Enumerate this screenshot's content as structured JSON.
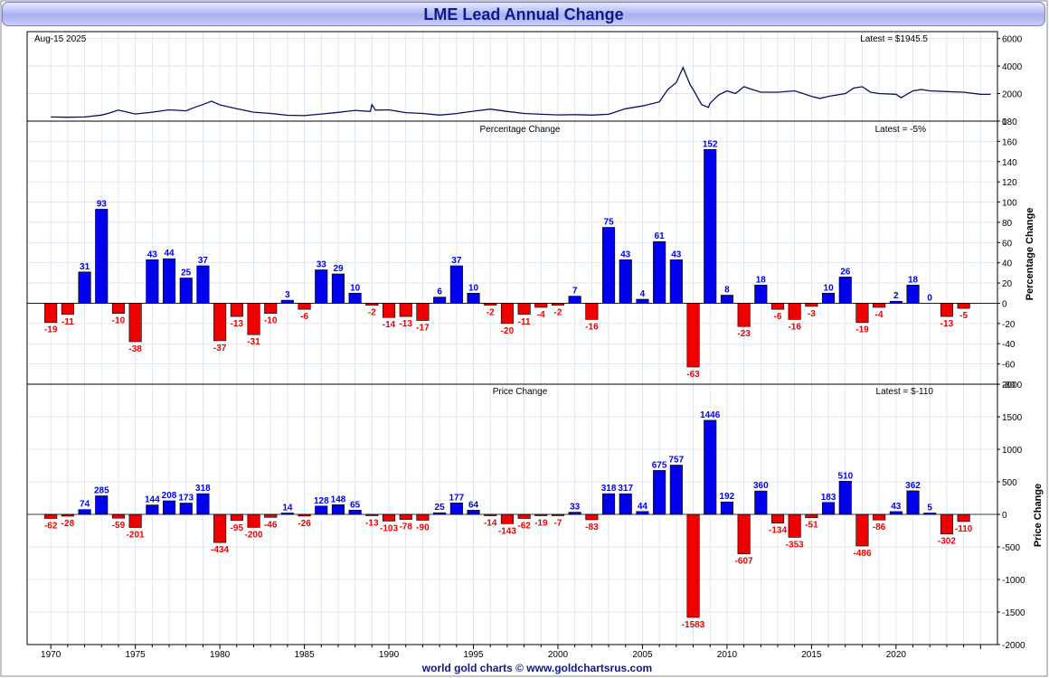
{
  "title": "LME Lead Annual Change",
  "date_label": "Aug-15  2025",
  "footer": "world gold charts © www.goldchartsrus.com",
  "colors": {
    "positive": "#0000ee",
    "negative": "#ee0000",
    "line": "#0a1060",
    "title": "#0d1a8c",
    "grid": "#d7e3ee"
  },
  "chart_data": [
    {
      "type": "line",
      "name": "price",
      "latest_label": "Latest = $1945.5",
      "ylim": [
        0,
        6500
      ],
      "yticks": [
        0,
        2000,
        4000,
        6000
      ],
      "x": [
        1970.0,
        1971.0,
        1972.0,
        1973.0,
        1973.5,
        1974.0,
        1975.0,
        1976.0,
        1977.0,
        1978.0,
        1978.5,
        1979.0,
        1979.5,
        1980.0,
        1981.0,
        1982.0,
        1983.0,
        1984.0,
        1985.0,
        1986.0,
        1987.0,
        1988.0,
        1988.9,
        1989.0,
        1989.2,
        1990.0,
        1991.0,
        1992.0,
        1993.0,
        1994.0,
        1995.0,
        1996.0,
        1997.0,
        1998.0,
        1999.0,
        2000.0,
        2001.0,
        2002.0,
        2003.0,
        2004.0,
        2005.0,
        2006.0,
        2006.5,
        2007.0,
        2007.4,
        2007.8,
        2008.0,
        2008.5,
        2008.9,
        2009.0,
        2009.5,
        2010.0,
        2010.5,
        2011.0,
        2011.5,
        2012.0,
        2013.0,
        2014.0,
        2015.0,
        2015.5,
        2016.0,
        2017.0,
        2017.5,
        2018.0,
        2018.5,
        2019.0,
        2020.0,
        2020.3,
        2021.0,
        2021.5,
        2022.0,
        2023.0,
        2024.0,
        2025.0,
        2025.6
      ],
      "y": [
        300,
        280,
        300,
        440,
        600,
        800,
        520,
        650,
        820,
        750,
        1000,
        1200,
        1450,
        1180,
        900,
        650,
        560,
        430,
        400,
        520,
        640,
        780,
        700,
        1200,
        800,
        820,
        620,
        560,
        440,
        550,
        720,
        870,
        700,
        560,
        500,
        450,
        470,
        440,
        500,
        900,
        1100,
        1400,
        2300,
        2800,
        3900,
        2700,
        2300,
        1200,
        1000,
        1300,
        1900,
        2200,
        2000,
        2500,
        2300,
        2100,
        2100,
        2200,
        1800,
        1650,
        1800,
        2000,
        2400,
        2500,
        2100,
        2000,
        1950,
        1700,
        2200,
        2300,
        2200,
        2150,
        2100,
        1950,
        1945
      ]
    },
    {
      "type": "bar",
      "name": "percentage",
      "panel_title": "Percentage Change",
      "latest_label": "Latest = -5%",
      "ylabel": "Percentage Change",
      "ylim": [
        -80,
        180
      ],
      "yticks": [
        -80,
        -60,
        -40,
        -20,
        0,
        20,
        40,
        60,
        80,
        100,
        120,
        140,
        160,
        180
      ],
      "x": [
        1970,
        1971,
        1972,
        1973,
        1974,
        1975,
        1976,
        1977,
        1978,
        1979,
        1980,
        1981,
        1982,
        1983,
        1984,
        1985,
        1986,
        1987,
        1988,
        1989,
        1990,
        1991,
        1992,
        1993,
        1994,
        1995,
        1996,
        1997,
        1998,
        1999,
        2000,
        2001,
        2002,
        2003,
        2004,
        2005,
        2006,
        2007,
        2008,
        2009,
        2010,
        2011,
        2012,
        2013,
        2014,
        2015,
        2016,
        2017,
        2018,
        2019,
        2020,
        2021,
        2022,
        2023,
        2024
      ],
      "values": [
        -19,
        -11,
        31,
        93,
        -10,
        -38,
        43,
        44,
        25,
        37,
        -37,
        -13,
        -31,
        -10,
        3,
        -6,
        33,
        29,
        10,
        -2,
        -14,
        -13,
        -17,
        6,
        37,
        10,
        -2,
        -20,
        -11,
        -4,
        -2,
        7,
        -16,
        75,
        43,
        4,
        61,
        43,
        -63,
        152,
        8,
        -23,
        18,
        -6,
        -16,
        -3,
        10,
        26,
        -19,
        -4,
        2,
        18,
        0,
        -13,
        -5
      ]
    },
    {
      "type": "bar",
      "name": "price_change",
      "panel_title": "Price Change",
      "latest_label": "Latest = $-110",
      "ylabel": "Price Change",
      "ylim": [
        -2000,
        2000
      ],
      "yticks": [
        -2000,
        -1500,
        -1000,
        -500,
        0,
        500,
        1000,
        1500,
        2000
      ],
      "x": [
        1970,
        1971,
        1972,
        1973,
        1974,
        1975,
        1976,
        1977,
        1978,
        1979,
        1980,
        1981,
        1982,
        1983,
        1984,
        1985,
        1986,
        1987,
        1988,
        1989,
        1990,
        1991,
        1992,
        1993,
        1994,
        1995,
        1996,
        1997,
        1998,
        1999,
        2000,
        2001,
        2002,
        2003,
        2004,
        2005,
        2006,
        2007,
        2008,
        2009,
        2010,
        2011,
        2012,
        2013,
        2014,
        2015,
        2016,
        2017,
        2018,
        2019,
        2020,
        2021,
        2022,
        2023,
        2024
      ],
      "values": [
        -62,
        -28,
        74,
        285,
        -59,
        -201,
        144,
        208,
        173,
        318,
        -434,
        -95,
        -200,
        -46,
        14,
        -26,
        128,
        148,
        65,
        -13,
        -103,
        -78,
        -90,
        25,
        177,
        64,
        -14,
        -143,
        -62,
        -19,
        -7,
        33,
        -83,
        318,
        317,
        44,
        675,
        757,
        -1583,
        1446,
        192,
        -607,
        360,
        -134,
        -353,
        -51,
        183,
        510,
        -486,
        -86,
        43,
        362,
        5,
        -302,
        -110
      ]
    }
  ],
  "x_axis": {
    "ticks": [
      1970,
      1975,
      1980,
      1985,
      1990,
      1995,
      2000,
      2005,
      2010,
      2015,
      2020
    ],
    "labels": [
      "1970",
      "1975",
      "1980",
      "1985",
      "1990",
      "1995",
      "2000",
      "2005",
      "2010",
      "2015",
      "2020"
    ]
  }
}
